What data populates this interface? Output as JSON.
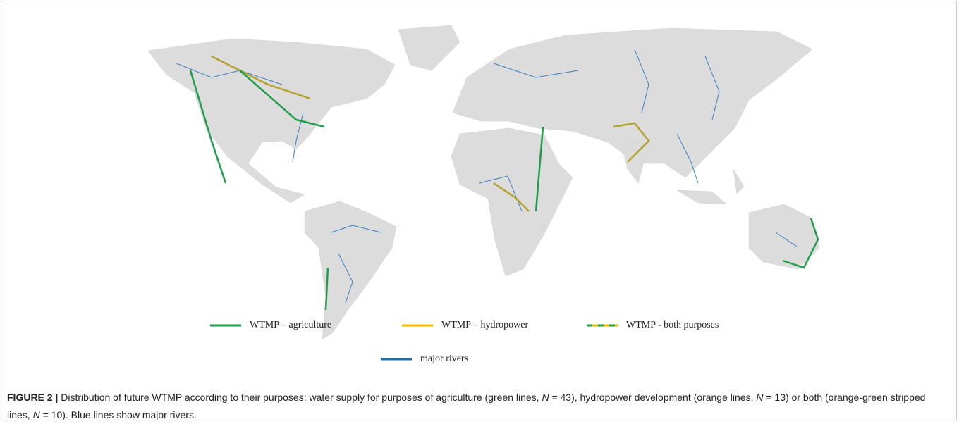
{
  "figure": {
    "legend": [
      {
        "label": "WTMP – agriculture",
        "colors": [
          "#1f9e4a"
        ]
      },
      {
        "label": "WTMP – hydropower",
        "colors": [
          "#f3b700"
        ]
      },
      {
        "label": "WTMP - both purposes",
        "colors": [
          "#1f9e4a",
          "#f3b700"
        ]
      },
      {
        "label": "major rivers",
        "colors": [
          "#1f6fb0"
        ]
      }
    ],
    "caption": {
      "label": "FIGURE 2 |",
      "parts": [
        " Distribution of future WTMP according to their purposes: water supply for purposes of agriculture (green lines, ",
        "N",
        " = 43), hydropower development (orange lines, ",
        "N",
        " = 13) or both (orange-green stripped lines, ",
        "N",
        " = 10). Blue lines show major rivers."
      ]
    }
  }
}
